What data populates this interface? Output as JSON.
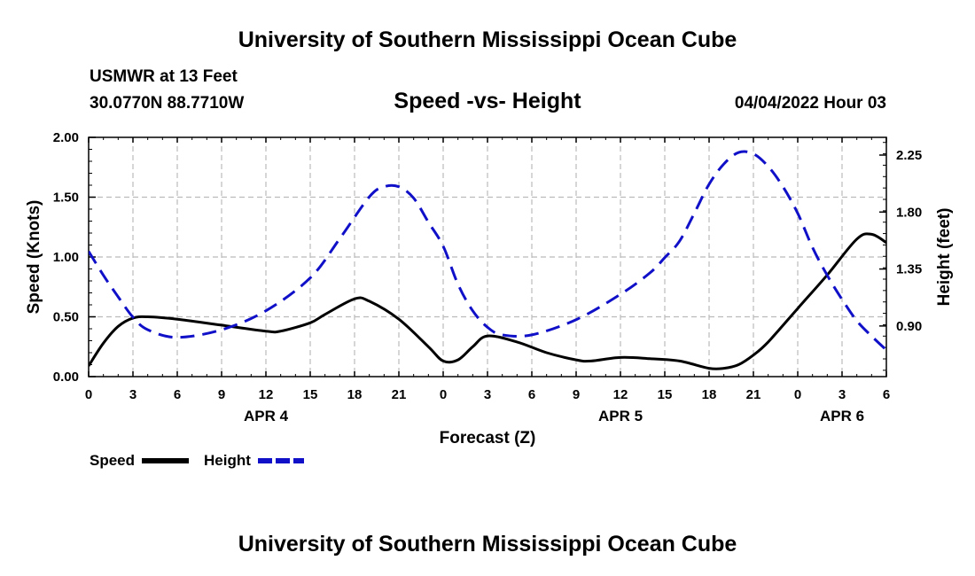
{
  "header": {
    "title": "University of Southern Mississippi Ocean Cube",
    "station": "USMWR at 13 Feet",
    "coords": "30.0770N  88.7710W",
    "chart_title": "Speed -vs- Height",
    "datetime": "04/04/2022 Hour 03"
  },
  "footer": {
    "title": "University of Southern Mississippi Ocean Cube"
  },
  "colors": {
    "speed": "#000000",
    "height": "#1010c8",
    "grid": "#bbbbbb"
  },
  "chart_data": {
    "type": "line",
    "title": "Speed -vs- Height",
    "xlabel": "Forecast (Z)",
    "ylabel": "Speed (Knots)",
    "y2label": "Height (feet)",
    "x_hours_range": [
      0,
      54
    ],
    "x_ticks": [
      {
        "hour": 0,
        "label": "0"
      },
      {
        "hour": 3,
        "label": "3"
      },
      {
        "hour": 6,
        "label": "6"
      },
      {
        "hour": 9,
        "label": "9"
      },
      {
        "hour": 12,
        "label": "12"
      },
      {
        "hour": 15,
        "label": "15"
      },
      {
        "hour": 18,
        "label": "18"
      },
      {
        "hour": 21,
        "label": "21"
      },
      {
        "hour": 24,
        "label": "0"
      },
      {
        "hour": 27,
        "label": "3"
      },
      {
        "hour": 30,
        "label": "6"
      },
      {
        "hour": 33,
        "label": "9"
      },
      {
        "hour": 36,
        "label": "12"
      },
      {
        "hour": 39,
        "label": "15"
      },
      {
        "hour": 42,
        "label": "18"
      },
      {
        "hour": 45,
        "label": "21"
      },
      {
        "hour": 48,
        "label": "0"
      },
      {
        "hour": 51,
        "label": "3"
      },
      {
        "hour": 54,
        "label": "6"
      }
    ],
    "date_labels": [
      {
        "hour": 12,
        "label": "APR 4"
      },
      {
        "hour": 36,
        "label": "APR 5"
      },
      {
        "hour": 51,
        "label": "APR 6"
      }
    ],
    "ylim": [
      0,
      2.0
    ],
    "y_ticks": [
      "0.00",
      "0.50",
      "1.00",
      "1.50",
      "2.00"
    ],
    "y2lim": [
      0.5,
      2.39
    ],
    "y2_ticks": [
      "0.90",
      "1.35",
      "1.80",
      "2.25"
    ],
    "legend": [
      {
        "name": "Speed",
        "style": "solid"
      },
      {
        "name": "Height",
        "style": "dashed"
      }
    ],
    "series": [
      {
        "name": "Speed",
        "axis": "left",
        "unit": "Knots",
        "x": [
          0,
          1,
          2,
          3,
          4,
          6,
          9,
          12,
          13,
          15,
          16,
          18,
          19,
          21,
          23,
          24,
          25,
          26,
          27,
          29,
          31,
          33,
          34,
          36,
          38,
          40,
          42,
          43,
          44,
          45,
          46,
          48,
          50,
          52,
          53,
          54
        ],
        "y": [
          0.09,
          0.28,
          0.42,
          0.49,
          0.5,
          0.48,
          0.43,
          0.38,
          0.38,
          0.45,
          0.52,
          0.65,
          0.63,
          0.48,
          0.25,
          0.13,
          0.14,
          0.25,
          0.34,
          0.29,
          0.2,
          0.14,
          0.13,
          0.16,
          0.15,
          0.13,
          0.07,
          0.07,
          0.1,
          0.18,
          0.29,
          0.57,
          0.85,
          1.15,
          1.19,
          1.12
        ]
      },
      {
        "name": "Height",
        "axis": "right",
        "unit": "feet",
        "x": [
          0,
          1,
          2,
          3,
          4,
          6,
          9,
          12,
          15,
          17,
          19,
          20,
          21,
          22,
          23,
          24,
          25,
          26,
          27,
          28,
          30,
          33,
          36,
          38,
          39,
          40,
          41,
          42,
          43,
          44,
          45,
          46,
          47,
          48,
          49,
          50,
          51,
          52,
          53,
          54
        ],
        "y": [
          1.49,
          1.3,
          1.13,
          0.97,
          0.87,
          0.81,
          0.87,
          1.02,
          1.28,
          1.59,
          1.92,
          2.0,
          2.0,
          1.91,
          1.72,
          1.53,
          1.23,
          1.02,
          0.89,
          0.83,
          0.83,
          0.95,
          1.15,
          1.32,
          1.44,
          1.57,
          1.79,
          2.02,
          2.18,
          2.27,
          2.26,
          2.16,
          2.0,
          1.79,
          1.52,
          1.3,
          1.11,
          0.94,
          0.82,
          0.71
        ]
      }
    ]
  }
}
